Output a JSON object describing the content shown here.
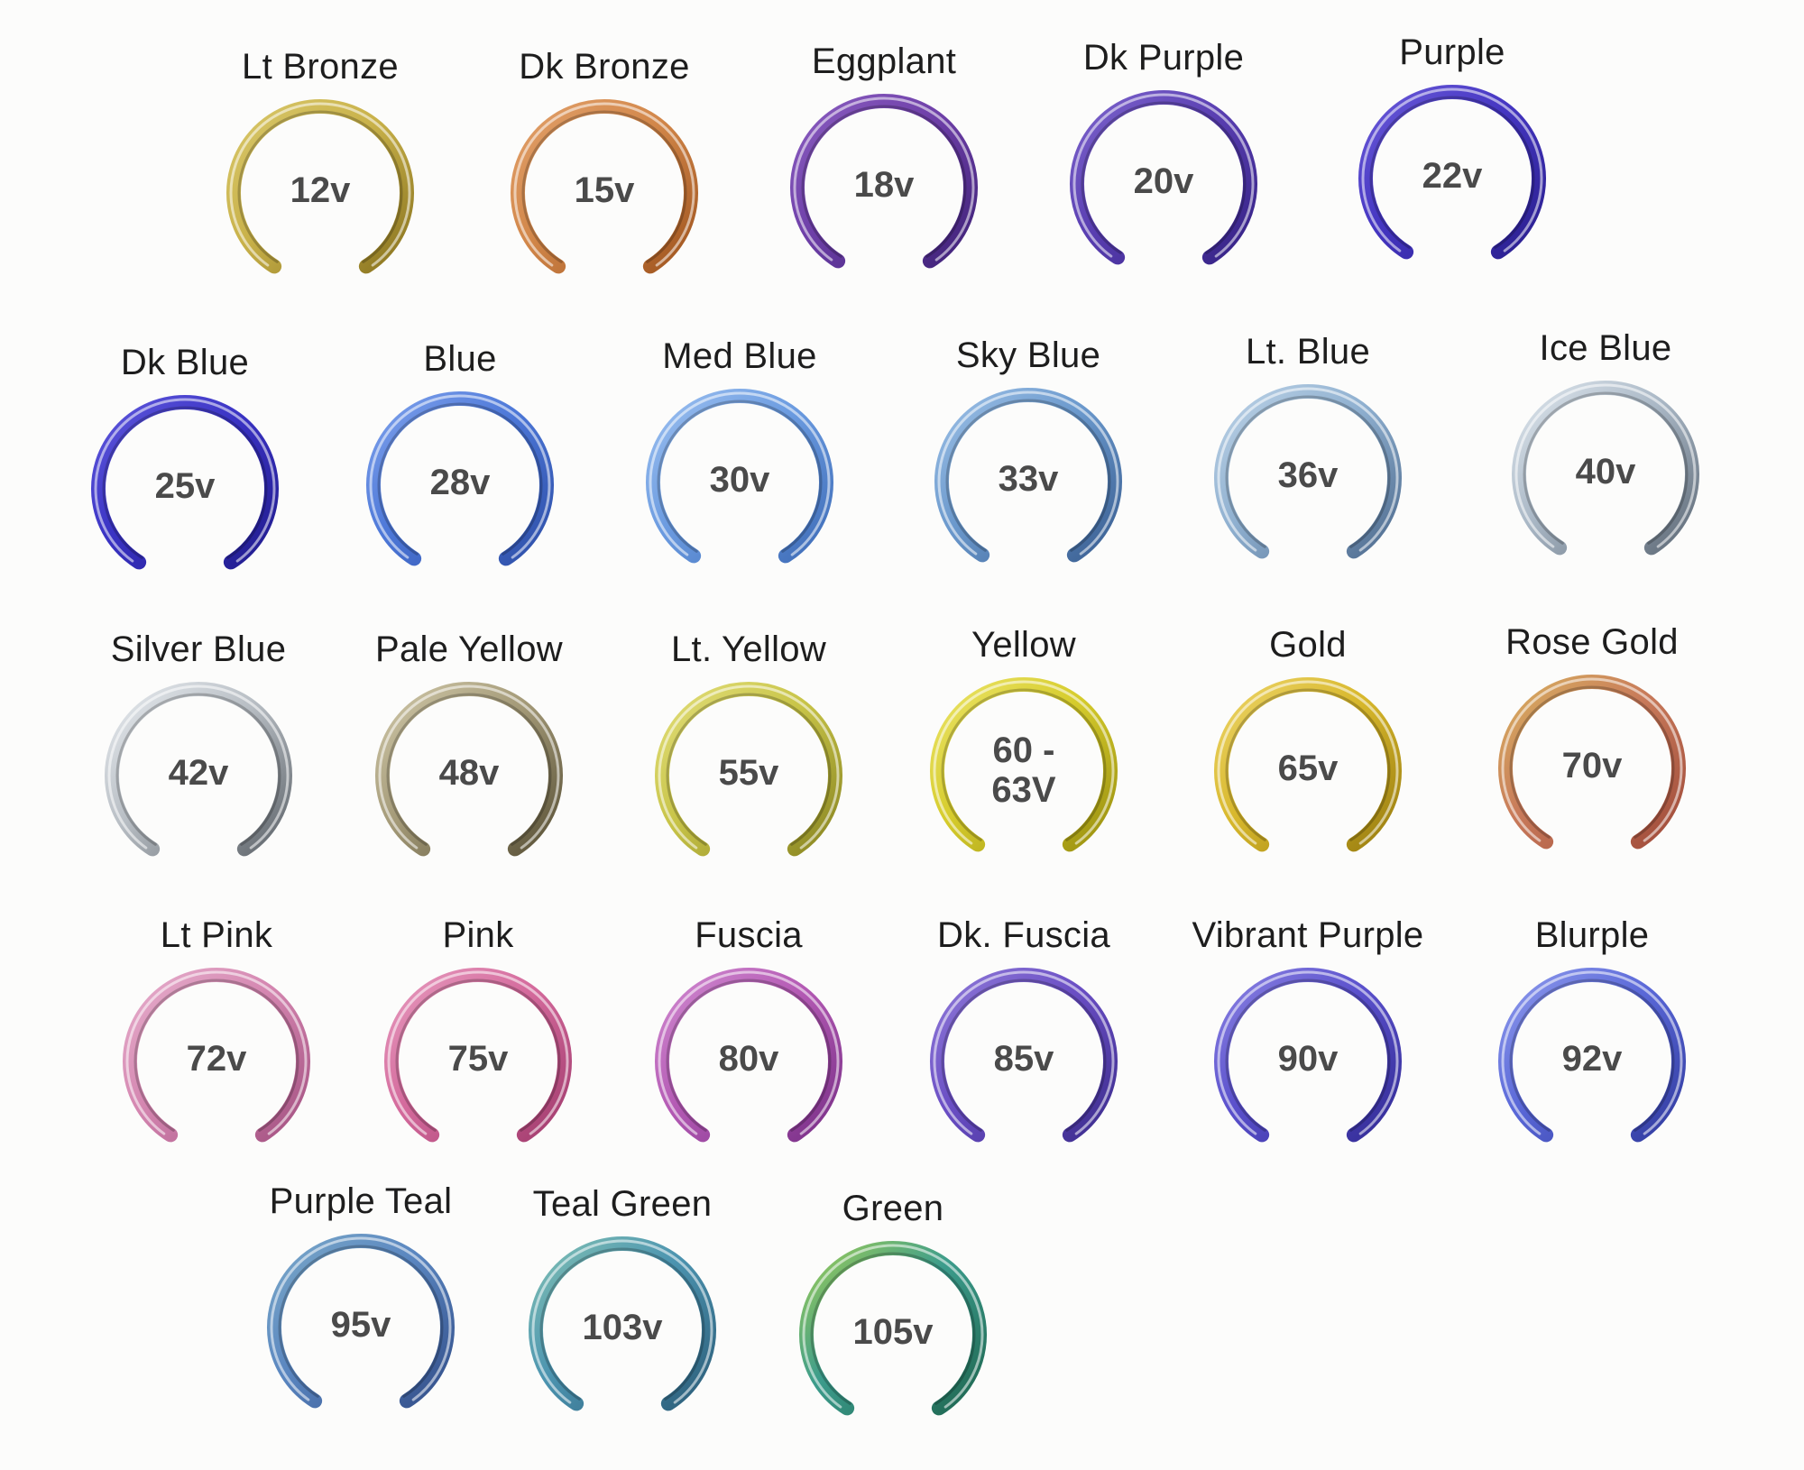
{
  "swatches": [
    {
      "name": "Lt  Bronze",
      "voltage": "12v",
      "colors": [
        "#c9b24a",
        "#8a7420",
        "#d8c76a"
      ]
    },
    {
      "name": "Dk  Bronze",
      "voltage": "15v",
      "colors": [
        "#d2874a",
        "#a0551f",
        "#e1a06a"
      ]
    },
    {
      "name": "Eggplant",
      "voltage": "18v",
      "colors": [
        "#6e3fa8",
        "#3f2278",
        "#8a5dc0"
      ]
    },
    {
      "name": "Dk  Purple",
      "voltage": "20v",
      "colors": [
        "#5a3fb2",
        "#352285",
        "#7d64cc"
      ]
    },
    {
      "name": "Purple",
      "voltage": "22v",
      "colors": [
        "#4536c2",
        "#2a1f8e",
        "#6a5ad8"
      ]
    },
    {
      "name": "Dk  Blue",
      "voltage": "25v",
      "colors": [
        "#3a33c4",
        "#211c8e",
        "#5f58dc"
      ]
    },
    {
      "name": "Blue",
      "voltage": "28v",
      "colors": [
        "#4d78d8",
        "#2e4fa8",
        "#7fa2ec"
      ]
    },
    {
      "name": "Med Blue",
      "voltage": "30v",
      "colors": [
        "#6b9be0",
        "#3f6db8",
        "#9cc0f0"
      ]
    },
    {
      "name": "Sky Blue",
      "voltage": "33v",
      "colors": [
        "#6a98cc",
        "#3a5f92",
        "#9cc0e6"
      ]
    },
    {
      "name": "Lt. Blue",
      "voltage": "36v",
      "colors": [
        "#8fb0d0",
        "#4f6c8f",
        "#bcd2e6"
      ]
    },
    {
      "name": "Ice Blue",
      "voltage": "40v",
      "colors": [
        "#aab8c6",
        "#5f6b78",
        "#dde5ec"
      ]
    },
    {
      "name": "Silver Blue",
      "voltage": "42v",
      "colors": [
        "#b8bec4",
        "#60666c",
        "#e6eaee"
      ]
    },
    {
      "name": "Pale Yellow",
      "voltage": "48v",
      "colors": [
        "#a49a78",
        "#5a5238",
        "#cfc7a8"
      ]
    },
    {
      "name": "Lt. Yellow",
      "voltage": "55v",
      "colors": [
        "#c8c448",
        "#8a8622",
        "#e2de7a"
      ]
    },
    {
      "name": "Yellow",
      "voltage": "60 -\n63V",
      "colors": [
        "#d6cc2c",
        "#9a9010",
        "#ebe468"
      ]
    },
    {
      "name": "Gold",
      "voltage": "65v",
      "colors": [
        "#d8b82c",
        "#9a7e10",
        "#ecd468"
      ]
    },
    {
      "name": "Rose Gold",
      "voltage": "70v",
      "colors": [
        "#c87a5a",
        "#a04b3a",
        "#d8b060"
      ]
    },
    {
      "name": "Lt  Pink",
      "voltage": "72v",
      "colors": [
        "#d486b0",
        "#a45282",
        "#e6aecc"
      ]
    },
    {
      "name": "Pink",
      "voltage": "75v",
      "colors": [
        "#d46a9c",
        "#a23c6e",
        "#e69abe"
      ]
    },
    {
      "name": "Fuscia",
      "voltage": "80v",
      "colors": [
        "#b45ab4",
        "#7a3088",
        "#d08ad0"
      ]
    },
    {
      "name": "Dk. Fuscia",
      "voltage": "85v",
      "colors": [
        "#6a4ec4",
        "#3d2d8e",
        "#8f7ad8"
      ]
    },
    {
      "name": "Vibrant Purple",
      "voltage": "90v",
      "colors": [
        "#5a50cc",
        "#332c96",
        "#8a82e2"
      ]
    },
    {
      "name": "Blurple",
      "voltage": "92v",
      "colors": [
        "#5a68d8",
        "#323ca0",
        "#8e9aec"
      ]
    },
    {
      "name": "Purple Teal",
      "voltage": "95v",
      "colors": [
        "#5a86c0",
        "#334f8a",
        "#7aa8c8"
      ]
    },
    {
      "name": "Teal Green",
      "voltage": "103v",
      "colors": [
        "#4c94b0",
        "#2c5e7a",
        "#80c0b4"
      ]
    },
    {
      "name": "Green",
      "voltage": "105v",
      "colors": [
        "#3c9c8c",
        "#1e6650",
        "#9ccc58"
      ]
    }
  ]
}
